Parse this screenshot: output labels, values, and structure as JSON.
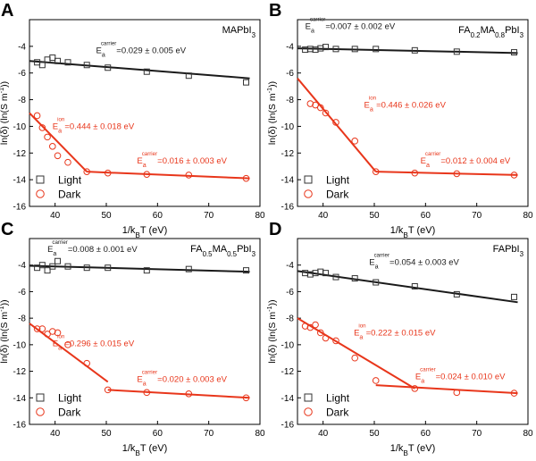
{
  "axis_labels": {
    "x": {
      "pre": "1/k",
      "sub": "B",
      "post": "T (eV)"
    },
    "y": {
      "pre": "ln(δ) (ln(S m",
      "sup": "-1",
      "post": "))"
    }
  },
  "legend_entries": {
    "light": "Light",
    "dark": "Dark"
  },
  "colors": {
    "light": "#1a1a1a",
    "dark": "#e8361b",
    "axis": "#000000"
  },
  "chart_data": [
    {
      "panel": "A",
      "title": "MAPbI3",
      "type": "scatter",
      "xlim": [
        35,
        80
      ],
      "ylim": [
        -16,
        -2
      ],
      "xticks": [
        40,
        50,
        60,
        70,
        80
      ],
      "yticks": [
        -4,
        -6,
        -8,
        -10,
        -12,
        -14,
        -16
      ],
      "legend": "bottom-left",
      "series": [
        {
          "name": "Light",
          "marker": "square",
          "x": [
            36.5,
            37.5,
            38.5,
            39.5,
            40.5,
            42.5,
            46.2,
            50.3,
            57.9,
            66.1,
            77.3
          ],
          "y": [
            -5.2,
            -5.4,
            -5.0,
            -4.85,
            -5.1,
            -5.2,
            -5.4,
            -5.6,
            -5.9,
            -6.2,
            -6.7
          ],
          "fit": {
            "x": [
              35,
              78
            ],
            "y": [
              -5.1,
              -6.4
            ]
          }
        },
        {
          "name": "Dark",
          "marker": "circle",
          "x": [
            36.5,
            37.5,
            38.5,
            39.5,
            40.5,
            42.5,
            46.2,
            50.3,
            57.9,
            66.1,
            77.3
          ],
          "y": [
            -9.2,
            -10.1,
            -10.8,
            -11.5,
            -12.2,
            -12.7,
            -13.4,
            -13.5,
            -13.6,
            -13.65,
            -13.9
          ],
          "fit": [
            {
              "x": [
                35,
                46.2
              ],
              "y": [
                -9.0,
                -13.4
              ]
            },
            {
              "x": [
                46.2,
                78
              ],
              "y": [
                -13.4,
                -13.9
              ]
            }
          ]
        }
      ],
      "annotations": [
        {
          "kind": "carrier",
          "series": "Light",
          "value": "=0.029 ± 0.005 eV",
          "x": 48,
          "y": -4.5
        },
        {
          "kind": "ion",
          "series": "Dark",
          "value": "=0.444 ± 0.018 eV",
          "x": 39.5,
          "y": -10.2
        },
        {
          "kind": "carrier",
          "series": "Dark",
          "value": "=0.016 ± 0.003 eV",
          "x": 56,
          "y": -12.8
        }
      ]
    },
    {
      "panel": "B",
      "title": "FA0.2MA0.8PbI3",
      "type": "scatter",
      "xlim": [
        35,
        80
      ],
      "ylim": [
        -16,
        -2
      ],
      "xticks": [
        40,
        50,
        60,
        70,
        80
      ],
      "yticks": [
        -4,
        -6,
        -8,
        -10,
        -12,
        -14,
        -16
      ],
      "legend": "bottom-left",
      "series": [
        {
          "name": "Light",
          "marker": "square",
          "x": [
            36.5,
            37.5,
            38.5,
            39.5,
            40.5,
            42.5,
            46.2,
            50.3,
            57.9,
            66.1,
            77.3
          ],
          "y": [
            -4.25,
            -4.2,
            -4.25,
            -4.15,
            -4.05,
            -4.2,
            -4.2,
            -4.2,
            -4.3,
            -4.4,
            -4.45
          ],
          "fit": {
            "x": [
              35,
              78
            ],
            "y": [
              -4.15,
              -4.5
            ]
          }
        },
        {
          "name": "Dark",
          "marker": "circle",
          "x": [
            37.5,
            38.5,
            39.5,
            40.5,
            42.5,
            46.2,
            50.3,
            57.9,
            66.1,
            77.3
          ],
          "y": [
            -8.3,
            -8.4,
            -8.6,
            -9.0,
            -9.7,
            -11.1,
            -13.4,
            -13.5,
            -13.55,
            -13.65
          ],
          "fit": [
            {
              "x": [
                35,
                50.3
              ],
              "y": [
                -6.4,
                -13.4
              ]
            },
            {
              "x": [
                50.3,
                78
              ],
              "y": [
                -13.4,
                -13.65
              ]
            }
          ]
        }
      ],
      "annotations": [
        {
          "kind": "carrier",
          "series": "Light",
          "value": "=0.007 ± 0.002 eV",
          "x": 36.5,
          "y": -2.7
        },
        {
          "kind": "ion",
          "series": "Dark",
          "value": "=0.446 ± 0.026 eV",
          "x": 48,
          "y": -8.6
        },
        {
          "kind": "carrier",
          "series": "Dark",
          "value": "=0.012 ± 0.004 eV",
          "x": 59,
          "y": -12.8
        }
      ]
    },
    {
      "panel": "C",
      "title": "FA0.5MA0.5PbI3",
      "type": "scatter",
      "xlim": [
        35,
        80
      ],
      "ylim": [
        -16,
        -2
      ],
      "xticks": [
        40,
        50,
        60,
        70,
        80
      ],
      "yticks": [
        -4,
        -6,
        -8,
        -10,
        -12,
        -14,
        -16
      ],
      "legend": "bottom-left",
      "series": [
        {
          "name": "Light",
          "marker": "square",
          "x": [
            36.5,
            37.5,
            38.5,
            39.5,
            40.5,
            42.5,
            46.2,
            50.3,
            57.9,
            66.1,
            77.3
          ],
          "y": [
            -4.2,
            -4.0,
            -4.4,
            -4.1,
            -3.7,
            -4.1,
            -4.2,
            -4.2,
            -4.4,
            -4.3,
            -4.4
          ],
          "fit": {
            "x": [
              35,
              78
            ],
            "y": [
              -4.05,
              -4.5
            ]
          }
        },
        {
          "name": "Dark",
          "marker": "circle",
          "x": [
            36.5,
            37.5,
            38.5,
            39.5,
            40.5,
            42.5,
            46.2,
            50.3,
            57.9,
            66.1,
            77.3
          ],
          "y": [
            -8.8,
            -8.8,
            -9.2,
            -9.0,
            -9.1,
            -10.0,
            -11.4,
            -13.4,
            -13.6,
            -13.7,
            -14.0
          ],
          "fit": [
            {
              "x": [
                35,
                50.3
              ],
              "y": [
                -8.4,
                -12.8
              ]
            },
            {
              "x": [
                50.3,
                78
              ],
              "y": [
                -13.4,
                -14.0
              ]
            }
          ]
        }
      ],
      "annotations": [
        {
          "kind": "carrier",
          "series": "Light",
          "value": "=0.008 ± 0.001 eV",
          "x": 38.5,
          "y": -3.0
        },
        {
          "kind": "ion",
          "series": "Dark",
          "value": "=0.296 ± 0.015 eV",
          "x": 39.5,
          "y": -10.1
        },
        {
          "kind": "carrier",
          "series": "Dark",
          "value": "=0.020 ± 0.003 eV",
          "x": 56,
          "y": -12.8
        }
      ]
    },
    {
      "panel": "D",
      "title": "FAPbI3",
      "type": "scatter",
      "xlim": [
        35,
        80
      ],
      "ylim": [
        -16,
        -2
      ],
      "xticks": [
        40,
        50,
        60,
        70,
        80
      ],
      "yticks": [
        -4,
        -6,
        -8,
        -10,
        -12,
        -14,
        -16
      ],
      "legend": "bottom-left",
      "series": [
        {
          "name": "Light",
          "marker": "square",
          "x": [
            36.5,
            37.5,
            38.5,
            39.5,
            40.5,
            42.5,
            46.2,
            50.3,
            57.9,
            66.1,
            77.3
          ],
          "y": [
            -4.6,
            -4.7,
            -4.6,
            -4.5,
            -4.6,
            -4.9,
            -5.0,
            -5.3,
            -5.6,
            -6.2,
            -6.4
          ],
          "fit": {
            "x": [
              35,
              78
            ],
            "y": [
              -4.45,
              -6.8
            ]
          }
        },
        {
          "name": "Dark",
          "marker": "circle",
          "x": [
            36.5,
            37.5,
            38.5,
            39.5,
            40.5,
            42.5,
            46.2,
            50.3,
            57.9,
            66.1,
            77.3
          ],
          "y": [
            -8.6,
            -8.7,
            -8.5,
            -9.1,
            -9.5,
            -9.7,
            -11.0,
            -12.7,
            -13.3,
            -13.6,
            -13.65
          ],
          "fit": [
            {
              "x": [
                35,
                57.9
              ],
              "y": [
                -8.0,
                -13.3
              ]
            },
            {
              "x": [
                50.3,
                78
              ],
              "y": [
                -13.05,
                -13.65
              ]
            }
          ]
        }
      ],
      "annotations": [
        {
          "kind": "carrier",
          "series": "Light",
          "value": "=0.054 ± 0.003 eV",
          "x": 49,
          "y": -4.0
        },
        {
          "kind": "ion",
          "series": "Dark",
          "value": "=0.222 ± 0.015 eV",
          "x": 46,
          "y": -9.3
        },
        {
          "kind": "carrier",
          "series": "Dark",
          "value": "=0.024 ± 0.010 eV",
          "x": 58,
          "y": -12.6
        }
      ]
    }
  ]
}
